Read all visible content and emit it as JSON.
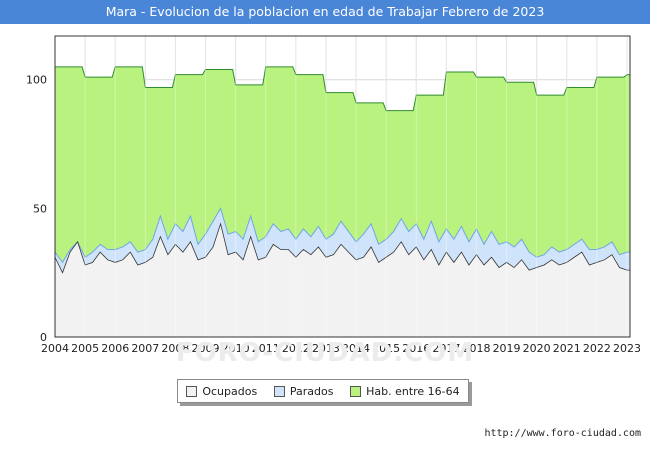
{
  "title": "Mara - Evolucion de la poblacion en edad de Trabajar Febrero de 2023",
  "footer": "http://www.foro-ciudad.com",
  "watermark": "FORO-CIUDAD.COM",
  "legend": [
    {
      "label": "Ocupados",
      "color": "#f2f2f2"
    },
    {
      "label": "Parados",
      "color": "#cfe4fb"
    },
    {
      "label": "Hab. entre 16-64",
      "color": "#b9f27f"
    }
  ],
  "chart_data": {
    "type": "area",
    "title": "Mara - Evolucion de la poblacion en edad de Trabajar Febrero de 2023",
    "xlabel": "",
    "ylabel": "",
    "xlim": [
      2004,
      2023.1
    ],
    "ylim": [
      0,
      117
    ],
    "x_ticks": [
      "2004",
      "2005",
      "2006",
      "2007",
      "2008",
      "2009",
      "2010",
      "2011",
      "2012",
      "2013",
      "2014",
      "2015",
      "2016",
      "2017",
      "2018",
      "2019",
      "2020",
      "2021",
      "2022",
      "2023"
    ],
    "y_ticks": [
      0,
      50,
      100
    ],
    "grid": true,
    "legend_position": "bottom",
    "colors": {
      "hab": "#b9f27f",
      "hab_line": "#2e8b2e",
      "parados": "#cfe4fb",
      "parados_line": "#6fa6e6",
      "ocupados": "#f2f2f2",
      "ocupados_line": "#333333"
    },
    "series": [
      {
        "name": "Hab. entre 16-64",
        "x": [
          2004.0,
          2004.9,
          2005.0,
          2005.9,
          2006.0,
          2006.9,
          2007.0,
          2007.9,
          2008.0,
          2008.9,
          2009.0,
          2009.9,
          2010.0,
          2010.9,
          2011.0,
          2011.9,
          2012.0,
          2012.9,
          2013.0,
          2013.9,
          2014.0,
          2014.9,
          2015.0,
          2015.9,
          2016.0,
          2016.9,
          2017.0,
          2017.9,
          2018.0,
          2018.9,
          2019.0,
          2019.9,
          2020.0,
          2020.9,
          2021.0,
          2021.9,
          2022.0,
          2022.9,
          2023.0,
          2023.1
        ],
        "values": [
          105,
          105,
          101,
          101,
          105,
          105,
          97,
          97,
          102,
          102,
          104,
          104,
          98,
          98,
          105,
          105,
          102,
          102,
          95,
          95,
          91,
          91,
          88,
          88,
          94,
          94,
          103,
          103,
          101,
          101,
          99,
          99,
          94,
          94,
          97,
          97,
          101,
          101,
          102,
          102
        ]
      },
      {
        "name": "Parados",
        "x": [
          2004.0,
          2004.25,
          2004.5,
          2004.75,
          2005.0,
          2005.25,
          2005.5,
          2005.75,
          2006.0,
          2006.25,
          2006.5,
          2006.75,
          2007.0,
          2007.25,
          2007.5,
          2007.75,
          2008.0,
          2008.25,
          2008.5,
          2008.75,
          2009.0,
          2009.25,
          2009.5,
          2009.75,
          2010.0,
          2010.25,
          2010.5,
          2010.75,
          2011.0,
          2011.25,
          2011.5,
          2011.75,
          2012.0,
          2012.25,
          2012.5,
          2012.75,
          2013.0,
          2013.25,
          2013.5,
          2013.75,
          2014.0,
          2014.25,
          2014.5,
          2014.75,
          2015.0,
          2015.25,
          2015.5,
          2015.75,
          2016.0,
          2016.25,
          2016.5,
          2016.75,
          2017.0,
          2017.25,
          2017.5,
          2017.75,
          2018.0,
          2018.25,
          2018.5,
          2018.75,
          2019.0,
          2019.25,
          2019.5,
          2019.75,
          2020.0,
          2020.25,
          2020.5,
          2020.75,
          2021.0,
          2021.25,
          2021.5,
          2021.75,
          2022.0,
          2022.25,
          2022.5,
          2022.75,
          2023.0,
          2023.1
        ],
        "values": [
          33,
          29,
          34,
          37,
          31,
          33,
          36,
          34,
          34,
          35,
          37,
          33,
          34,
          38,
          47,
          38,
          44,
          41,
          47,
          36,
          40,
          45,
          50,
          40,
          41,
          38,
          47,
          37,
          39,
          44,
          41,
          42,
          38,
          42,
          39,
          43,
          38,
          40,
          45,
          41,
          37,
          40,
          44,
          36,
          38,
          41,
          46,
          41,
          44,
          38,
          45,
          37,
          42,
          38,
          43,
          37,
          42,
          36,
          41,
          36,
          37,
          35,
          38,
          33,
          31,
          32,
          35,
          33,
          34,
          36,
          38,
          34,
          34,
          35,
          37,
          32,
          33,
          33
        ]
      },
      {
        "name": "Ocupados",
        "x": [
          2004.0,
          2004.25,
          2004.5,
          2004.75,
          2005.0,
          2005.25,
          2005.5,
          2005.75,
          2006.0,
          2006.25,
          2006.5,
          2006.75,
          2007.0,
          2007.25,
          2007.5,
          2007.75,
          2008.0,
          2008.25,
          2008.5,
          2008.75,
          2009.0,
          2009.25,
          2009.5,
          2009.75,
          2010.0,
          2010.25,
          2010.5,
          2010.75,
          2011.0,
          2011.25,
          2011.5,
          2011.75,
          2012.0,
          2012.25,
          2012.5,
          2012.75,
          2013.0,
          2013.25,
          2013.5,
          2013.75,
          2014.0,
          2014.25,
          2014.5,
          2014.75,
          2015.0,
          2015.25,
          2015.5,
          2015.75,
          2016.0,
          2016.25,
          2016.5,
          2016.75,
          2017.0,
          2017.25,
          2017.5,
          2017.75,
          2018.0,
          2018.25,
          2018.5,
          2018.75,
          2019.0,
          2019.25,
          2019.5,
          2019.75,
          2020.0,
          2020.25,
          2020.5,
          2020.75,
          2021.0,
          2021.25,
          2021.5,
          2021.75,
          2022.0,
          2022.25,
          2022.5,
          2022.75,
          2023.0,
          2023.1
        ],
        "values": [
          31,
          25,
          33,
          37,
          28,
          29,
          33,
          30,
          29,
          30,
          33,
          28,
          29,
          31,
          39,
          32,
          36,
          33,
          37,
          30,
          31,
          35,
          44,
          32,
          33,
          30,
          39,
          30,
          31,
          36,
          34,
          34,
          31,
          34,
          32,
          35,
          31,
          32,
          36,
          33,
          30,
          31,
          35,
          29,
          31,
          33,
          37,
          32,
          35,
          30,
          34,
          28,
          33,
          29,
          33,
          28,
          32,
          28,
          31,
          27,
          29,
          27,
          30,
          26,
          27,
          28,
          30,
          28,
          29,
          31,
          33,
          28,
          29,
          30,
          32,
          27,
          26,
          26
        ]
      }
    ]
  }
}
